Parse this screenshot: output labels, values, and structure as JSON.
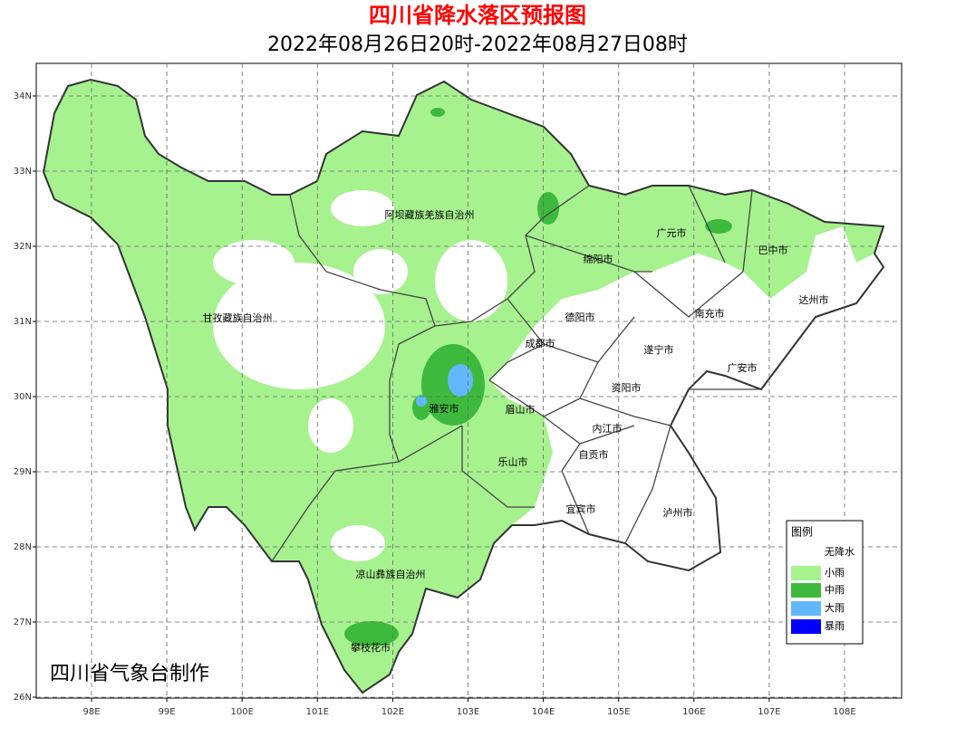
{
  "header": {
    "title": "四川省降水落区预报图",
    "subtitle": "2022年08月26日20时-2022年08月27日08时"
  },
  "axes": {
    "x_ticks": [
      "98E",
      "99E",
      "100E",
      "101E",
      "102E",
      "103E",
      "104E",
      "105E",
      "106E",
      "107E",
      "108E"
    ],
    "y_ticks": [
      "34N",
      "33N",
      "32N",
      "31N",
      "30N",
      "29N",
      "28N",
      "27N",
      "26N"
    ]
  },
  "regions": [
    "阿坝藏族羌族自治州",
    "广元市",
    "巴中市",
    "绵阳市",
    "达州市",
    "甘孜藏族自治州",
    "德阳市",
    "南充市",
    "成都市",
    "遂宁市",
    "广安市",
    "资阳市",
    "雅安市",
    "眉山市",
    "内江市",
    "自贡市",
    "乐山市",
    "宜宾市",
    "泸州市",
    "凉山彝族自治州",
    "攀枝花市"
  ],
  "legend": {
    "title": "图例",
    "items": [
      {
        "label": "无降水",
        "color": "#ffffff"
      },
      {
        "label": "小雨",
        "color": "#a6f28f"
      },
      {
        "label": "中雨",
        "color": "#3dba3d"
      },
      {
        "label": "大雨",
        "color": "#61b8ff"
      },
      {
        "label": "暴雨",
        "color": "#0000fe"
      }
    ]
  },
  "credit": "四川省气象台制作"
}
